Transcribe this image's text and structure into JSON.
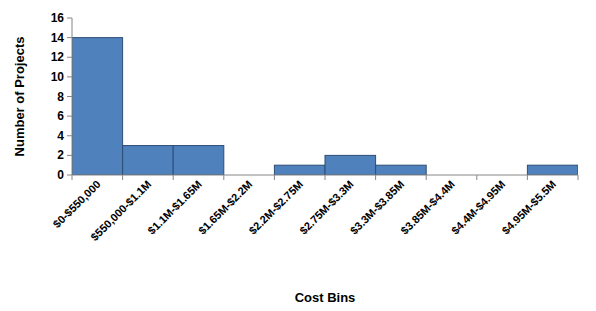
{
  "chart_data": {
    "type": "bar",
    "x_label": "Cost Bins",
    "y_label": "Number of Projects",
    "categories": [
      "$0-$550,000",
      "$550,000-$1.1M",
      "$1.1M-$1.65M",
      "$1.65M-$2.2M",
      "$2.2M-$2.75M",
      "$2.75M-$3.3M",
      "$3.3M-$3.85M",
      "$3.85M-$4.4M",
      "$4.4M-$4.95M",
      "$4.95M-$5.5M"
    ],
    "values": [
      14,
      3,
      3,
      0,
      1,
      2,
      1,
      0,
      0,
      1
    ],
    "color": "#4f81bd",
    "ylim": [
      0,
      16
    ],
    "yticks": [
      0,
      2,
      4,
      6,
      8,
      10,
      12,
      14,
      16
    ],
    "grid": false
  }
}
